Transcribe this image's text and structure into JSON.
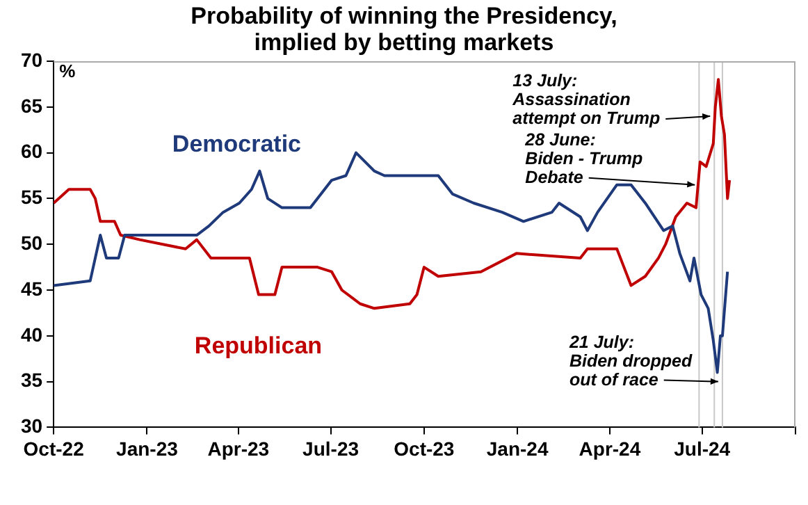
{
  "chart_data": {
    "type": "line",
    "title": "Probability of winning the Presidency,\nimplied by betting markets",
    "ylabel": "%",
    "xlim": [
      "2022-10-01",
      "2024-10-01"
    ],
    "xticks": [
      {
        "value": "2022-10-01",
        "label": "Oct-22"
      },
      {
        "value": "2023-01-01",
        "label": "Jan-23"
      },
      {
        "value": "2023-04-01",
        "label": "Apr-23"
      },
      {
        "value": "2023-07-01",
        "label": "Jul-23"
      },
      {
        "value": "2023-10-01",
        "label": "Oct-23"
      },
      {
        "value": "2024-01-01",
        "label": "Jan-24"
      },
      {
        "value": "2024-04-01",
        "label": "Apr-24"
      },
      {
        "value": "2024-07-01",
        "label": "Jul-24"
      },
      {
        "value": "2024-10-01",
        "label": null
      }
    ],
    "ylim": [
      30,
      70
    ],
    "yticks": [
      30,
      35,
      40,
      45,
      50,
      55,
      60,
      65,
      70
    ],
    "grid": false,
    "legend": false,
    "marker": "none",
    "line_style": "solid",
    "series": [
      {
        "name": "Democratic",
        "color": "#1f3a7a",
        "x": [
          "2022-10-01",
          "2022-11-06",
          "2022-11-16",
          "2022-11-22",
          "2022-12-04",
          "2022-12-10",
          "2023-01-08",
          "2023-02-19",
          "2023-03-03",
          "2023-03-17",
          "2023-04-02",
          "2023-04-14",
          "2023-04-22",
          "2023-04-30",
          "2023-05-14",
          "2023-06-11",
          "2023-07-02",
          "2023-07-16",
          "2023-07-26",
          "2023-08-13",
          "2023-08-23",
          "2023-10-15",
          "2023-10-29",
          "2023-11-19",
          "2023-12-17",
          "2024-01-07",
          "2024-02-04",
          "2024-02-11",
          "2024-03-03",
          "2024-03-10",
          "2024-03-20",
          "2024-04-08",
          "2024-04-22",
          "2024-05-06",
          "2024-05-24",
          "2024-06-02",
          "2024-06-09",
          "2024-06-19",
          "2024-06-23",
          "2024-06-30",
          "2024-07-07",
          "2024-07-12",
          "2024-07-16",
          "2024-07-19",
          "2024-07-21",
          "2024-07-26"
        ],
        "values": [
          45.5,
          46,
          51,
          48.5,
          48.5,
          51,
          51,
          51,
          52,
          53.5,
          54.5,
          56,
          58,
          55,
          54,
          54,
          57,
          57.5,
          60,
          58,
          57.5,
          57.5,
          55.5,
          54.5,
          53.5,
          52.5,
          53.5,
          54.5,
          53,
          51.5,
          53.5,
          56.5,
          56.5,
          54.5,
          51.5,
          52,
          49,
          46,
          48.5,
          44.5,
          43,
          39.5,
          36,
          40,
          40,
          47
        ]
      },
      {
        "name": "Republican",
        "color": "#c00000",
        "x": [
          "2022-10-01",
          "2022-10-16",
          "2022-11-06",
          "2022-11-11",
          "2022-11-16",
          "2022-11-30",
          "2022-12-06",
          "2022-12-25",
          "2023-02-08",
          "2023-02-19",
          "2023-03-05",
          "2023-04-12",
          "2023-04-21",
          "2023-05-07",
          "2023-05-14",
          "2023-06-18",
          "2023-07-02",
          "2023-07-12",
          "2023-07-30",
          "2023-08-13",
          "2023-09-17",
          "2023-09-24",
          "2023-10-01",
          "2023-10-15",
          "2023-11-26",
          "2023-12-31",
          "2024-03-03",
          "2024-03-10",
          "2024-04-08",
          "2024-04-15",
          "2024-04-22",
          "2024-05-06",
          "2024-05-19",
          "2024-05-26",
          "2024-06-05",
          "2024-06-16",
          "2024-06-25",
          "2024-06-29",
          "2024-07-05",
          "2024-07-12",
          "2024-07-14",
          "2024-07-17",
          "2024-07-20",
          "2024-07-23",
          "2024-07-26",
          "2024-07-28"
        ],
        "values": [
          54.5,
          56,
          56,
          55,
          52.5,
          52.5,
          51,
          50.5,
          49.5,
          50.5,
          48.5,
          48.5,
          44.5,
          44.5,
          47.5,
          47.5,
          47,
          45,
          43.5,
          43,
          43.5,
          44.5,
          47.5,
          46.5,
          47,
          49,
          48.5,
          49.5,
          49.5,
          47.5,
          45.5,
          46.5,
          48.5,
          50,
          53,
          54.5,
          54,
          59,
          58.5,
          61,
          65,
          68,
          64,
          62,
          55,
          57
        ]
      }
    ],
    "ref_lines": [
      {
        "axis": "x",
        "value": "2024-06-28",
        "color": "#c8c8c8"
      },
      {
        "axis": "x",
        "value": "2024-07-13",
        "color": "#c8c8c8"
      },
      {
        "axis": "x",
        "value": "2024-07-21",
        "color": "#c8c8c8"
      }
    ],
    "annotations": [
      {
        "text": "13 July:\nAssassination\nattempt on Trump",
        "x": "2024-07-13",
        "y": 64
      },
      {
        "text": "28 June:\nBiden - Trump\nDebate",
        "x": "2024-06-28",
        "y": 56.5
      },
      {
        "text": "21 July:\nBiden dropped\nout of race",
        "x": "2024-07-21",
        "y": 35
      }
    ]
  }
}
